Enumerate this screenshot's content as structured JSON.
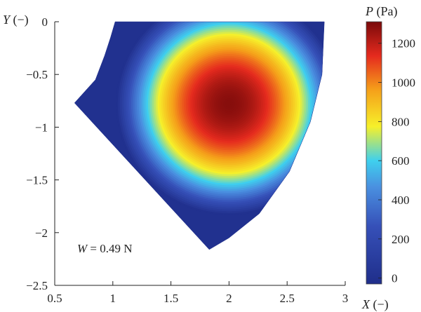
{
  "chart_data": {
    "type": "heatmap",
    "title": "",
    "xlabel": {
      "symbol": "X",
      "unit": "(−)"
    },
    "ylabel": {
      "symbol": "Y",
      "unit": "(−)"
    },
    "xlim": [
      0.5,
      3
    ],
    "ylim": [
      -2.5,
      0
    ],
    "x_ticks": [
      0.5,
      1,
      1.5,
      2,
      2.5,
      3
    ],
    "x_tick_labels": [
      "0.5",
      "1",
      "1.5",
      "2",
      "2.5",
      "3"
    ],
    "y_ticks": [
      0,
      -0.5,
      -1,
      -1.5,
      -2,
      -2.5
    ],
    "y_tick_labels": [
      "0",
      "−0.5",
      "−1",
      "−1.5",
      "−2",
      "−2.5"
    ],
    "grid": false,
    "domain_boundary": [
      [
        1.02,
        0
      ],
      [
        2.82,
        0
      ],
      [
        2.8,
        -0.5
      ],
      [
        2.7,
        -0.95
      ],
      [
        2.52,
        -1.42
      ],
      [
        2.26,
        -1.82
      ],
      [
        2.0,
        -2.05
      ],
      [
        1.83,
        -2.16
      ],
      [
        0.67,
        -0.77
      ],
      [
        0.85,
        -0.55
      ],
      [
        0.93,
        -0.32
      ],
      [
        0.98,
        -0.15
      ]
    ],
    "peak": {
      "x": 2.0,
      "y": -0.78,
      "value": 1290
    },
    "field_shape": {
      "radius_x": 0.72,
      "radius_y": 0.78
    },
    "colorbar": {
      "label": {
        "symbol": "P",
        "unit": "(Pa)"
      },
      "min": -30,
      "max": 1310,
      "ticks": [
        0,
        200,
        400,
        600,
        800,
        1000,
        1200
      ],
      "tick_labels": [
        "0",
        "200",
        "400",
        "600",
        "800",
        "1000",
        "1200"
      ],
      "colors": [
        "#1f2e8a",
        "#3650b8",
        "#4a90e0",
        "#3fd0ee",
        "#f6f02a",
        "#f5a01a",
        "#e52a1e",
        "#7a0a0a"
      ],
      "color_stops": [
        0,
        0.22,
        0.37,
        0.47,
        0.6,
        0.74,
        0.87,
        1
      ]
    },
    "annotation": {
      "symbol": "W",
      "text": "= 0.49 N"
    }
  }
}
